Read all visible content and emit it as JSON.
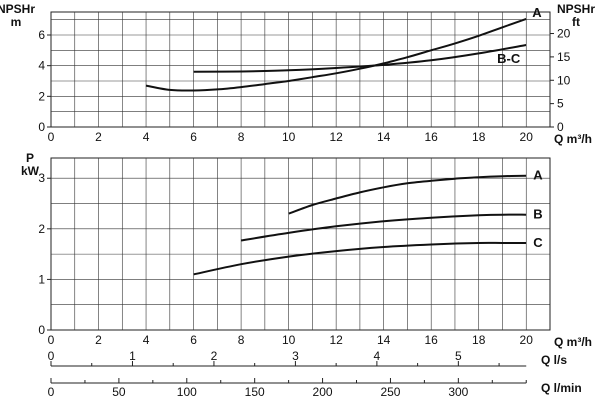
{
  "chart_data": [
    {
      "type": "line",
      "ylabel_left": [
        "NPSHr",
        "m"
      ],
      "ylabel_right": [
        "NPSHr",
        "ft"
      ],
      "xlabel": "Q m³/h",
      "xlim": [
        0,
        21
      ],
      "xticks": [
        0,
        2,
        4,
        6,
        8,
        10,
        12,
        14,
        16,
        18,
        20
      ],
      "ylim": [
        0,
        7.5
      ],
      "yticks": [
        0,
        2,
        4,
        6
      ],
      "y2ticks": [
        0,
        5,
        10,
        15,
        20
      ],
      "grid": true,
      "series": [
        {
          "name": "A",
          "x": [
            4,
            5,
            6,
            7,
            8,
            9,
            10,
            11,
            12,
            13,
            14,
            15,
            16,
            17,
            18,
            19,
            20
          ],
          "y": [
            2.7,
            2.42,
            2.38,
            2.45,
            2.6,
            2.8,
            3.0,
            3.25,
            3.5,
            3.8,
            4.15,
            4.55,
            5.0,
            5.45,
            5.95,
            6.5,
            7.05
          ]
        },
        {
          "name": "B-C",
          "x": [
            6,
            8,
            10,
            12,
            14,
            16,
            18,
            20
          ],
          "y": [
            3.6,
            3.62,
            3.7,
            3.85,
            4.05,
            4.35,
            4.8,
            5.35
          ]
        }
      ]
    },
    {
      "type": "line",
      "ylabel": [
        "P",
        "kW"
      ],
      "xlabel": "Q m³/h",
      "xlim": [
        0,
        21
      ],
      "xticks": [
        0,
        2,
        4,
        6,
        8,
        10,
        12,
        14,
        16,
        18,
        20
      ],
      "ylim": [
        0,
        3.4
      ],
      "yticks": [
        0,
        1,
        2,
        3
      ],
      "grid": true,
      "series": [
        {
          "name": "A",
          "x": [
            10,
            11,
            12,
            13,
            14,
            15,
            16,
            17,
            18,
            19,
            20
          ],
          "y": [
            2.3,
            2.47,
            2.6,
            2.72,
            2.82,
            2.9,
            2.95,
            2.99,
            3.02,
            3.04,
            3.05
          ]
        },
        {
          "name": "B",
          "x": [
            8,
            10,
            12,
            14,
            16,
            18,
            19,
            20
          ],
          "y": [
            1.77,
            1.92,
            2.05,
            2.15,
            2.22,
            2.27,
            2.28,
            2.28
          ]
        },
        {
          "name": "C",
          "x": [
            6,
            8,
            10,
            12,
            14,
            16,
            18,
            19,
            20
          ],
          "y": [
            1.1,
            1.3,
            1.45,
            1.56,
            1.64,
            1.69,
            1.72,
            1.72,
            1.72
          ]
        }
      ]
    }
  ],
  "extra_axes": [
    {
      "label": "Q l/s",
      "max": 5.8333,
      "ticks": [
        0,
        1,
        2,
        3,
        4,
        5
      ],
      "minor_step": 0.5
    },
    {
      "label": "Q l/min",
      "max": 350,
      "ticks": [
        0,
        50,
        100,
        150,
        200,
        250,
        300
      ],
      "minor_step": 25
    }
  ]
}
